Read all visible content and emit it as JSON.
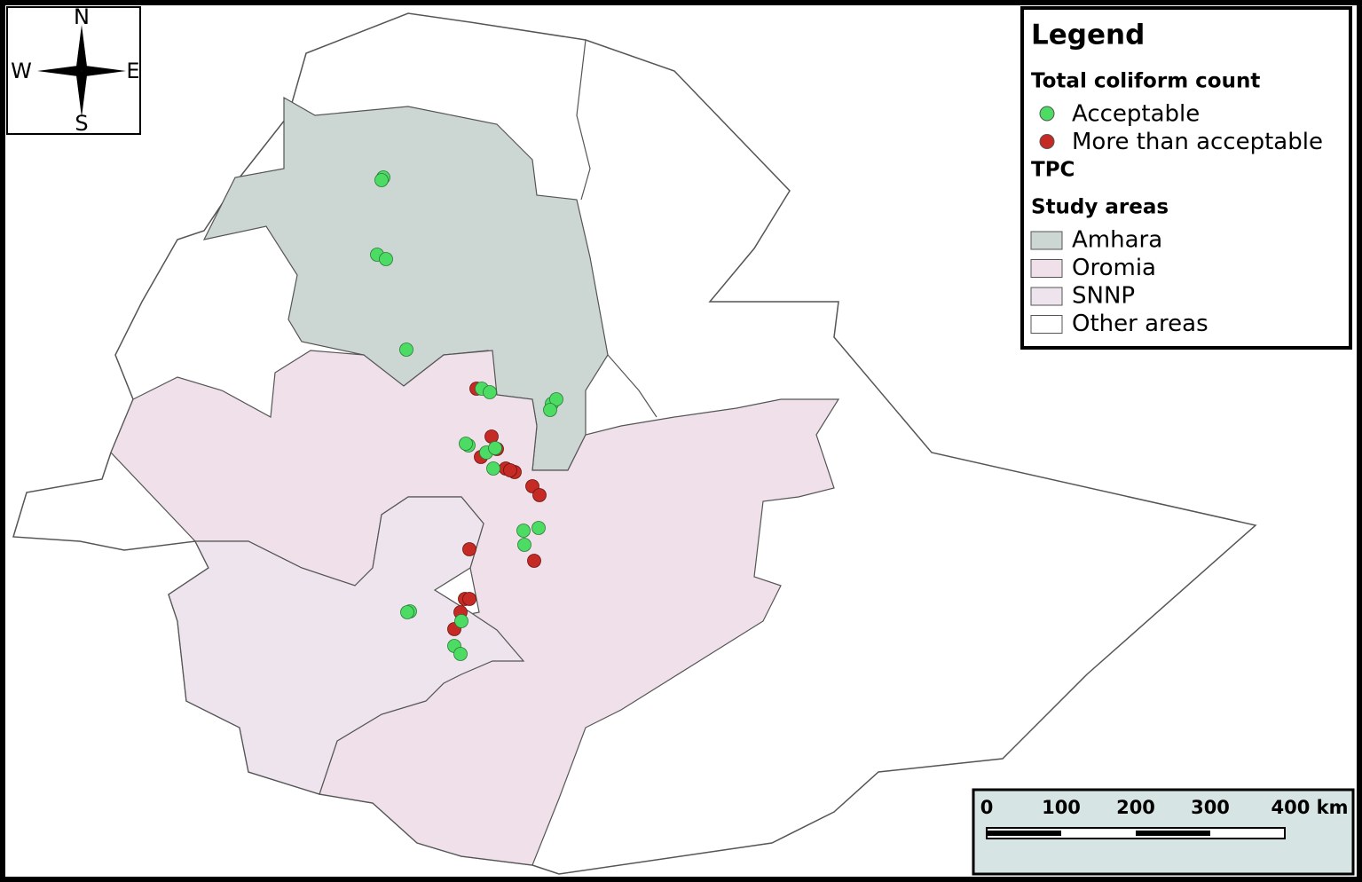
{
  "compass": {
    "north": "N",
    "west": "W",
    "east": "E",
    "south": "S"
  },
  "legend": {
    "title": "Legend",
    "sections": [
      {
        "heading": "Total coliform count",
        "items": [
          {
            "label": "Acceptable",
            "color": "#4cdc64"
          },
          {
            "label": "More than acceptable",
            "color": "#c62a24"
          }
        ]
      },
      {
        "heading": "TPC"
      },
      {
        "heading": "Study areas",
        "items": [
          {
            "label": "Amhara",
            "color": "#ccd6d3"
          },
          {
            "label": "Oromia",
            "color": "#efe0ea"
          },
          {
            "label": "SNNP",
            "color": "#ede4ee"
          },
          {
            "label": "Other areas",
            "color": "#ffffff"
          }
        ]
      }
    ]
  },
  "scale_bar": {
    "labels": [
      "0",
      "100",
      "200",
      "300",
      "400 km"
    ]
  }
}
